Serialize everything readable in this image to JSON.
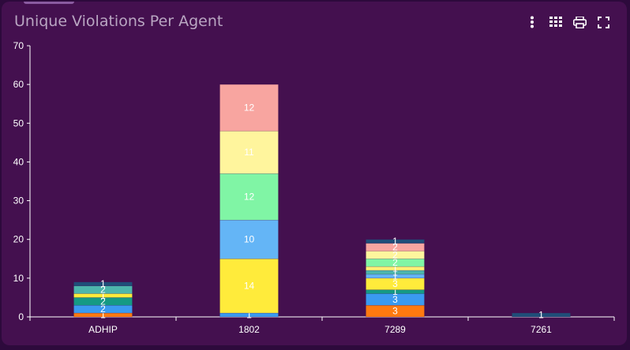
{
  "header": {
    "title": "Unique Violations Per Agent"
  },
  "toolbar": {
    "items": [
      {
        "icon": "more-vertical-icon"
      },
      {
        "icon": "grid-view-icon"
      },
      {
        "icon": "print-icon"
      },
      {
        "icon": "fullscreen-icon"
      }
    ]
  },
  "colors": {
    "background": "#44104f",
    "axis": "#ffffff",
    "text": "#ffffff"
  },
  "chart_data": {
    "type": "bar",
    "stacked": true,
    "categories": [
      "ADHIP",
      "1802",
      "7289",
      "7261"
    ],
    "ylim": [
      0,
      70
    ],
    "yticks": [
      0,
      10,
      20,
      30,
      40,
      50,
      60,
      70
    ],
    "grid": false,
    "legend": "none",
    "stacks": [
      [
        {
          "value": 1,
          "color": "#ff7a10"
        },
        {
          "value": 2,
          "color": "#3a9af0"
        },
        {
          "value": 2,
          "color": "#159a84"
        },
        {
          "value": 1,
          "color": "#ffeb3b"
        },
        {
          "value": 2,
          "color": "#4db6ac"
        },
        {
          "value": 1,
          "color": "#1f4e79"
        }
      ],
      [
        {
          "value": 1,
          "color": "#3a9af0"
        },
        {
          "value": 14,
          "color": "#ffeb3b"
        },
        {
          "value": 10,
          "color": "#64b5f6"
        },
        {
          "value": 12,
          "color": "#80f5a5"
        },
        {
          "value": 11,
          "color": "#fff59d"
        },
        {
          "value": 12,
          "color": "#f8a5a0"
        }
      ],
      [
        {
          "value": 3,
          "color": "#ff7a10"
        },
        {
          "value": 3,
          "color": "#3a9af0"
        },
        {
          "value": 1,
          "color": "#159a84"
        },
        {
          "value": 3,
          "color": "#ffeb3b"
        },
        {
          "value": 1,
          "color": "#64b5f6"
        },
        {
          "value": 1,
          "color": "#4db6ac"
        },
        {
          "value": 1,
          "color": "#fff176"
        },
        {
          "value": 2,
          "color": "#80f5a5"
        },
        {
          "value": 2,
          "color": "#fff59d"
        },
        {
          "value": 2,
          "color": "#f8a5a0"
        },
        {
          "value": 1,
          "color": "#1f4e79"
        }
      ],
      [
        {
          "value": 1,
          "color": "#1f4e79"
        }
      ]
    ]
  }
}
